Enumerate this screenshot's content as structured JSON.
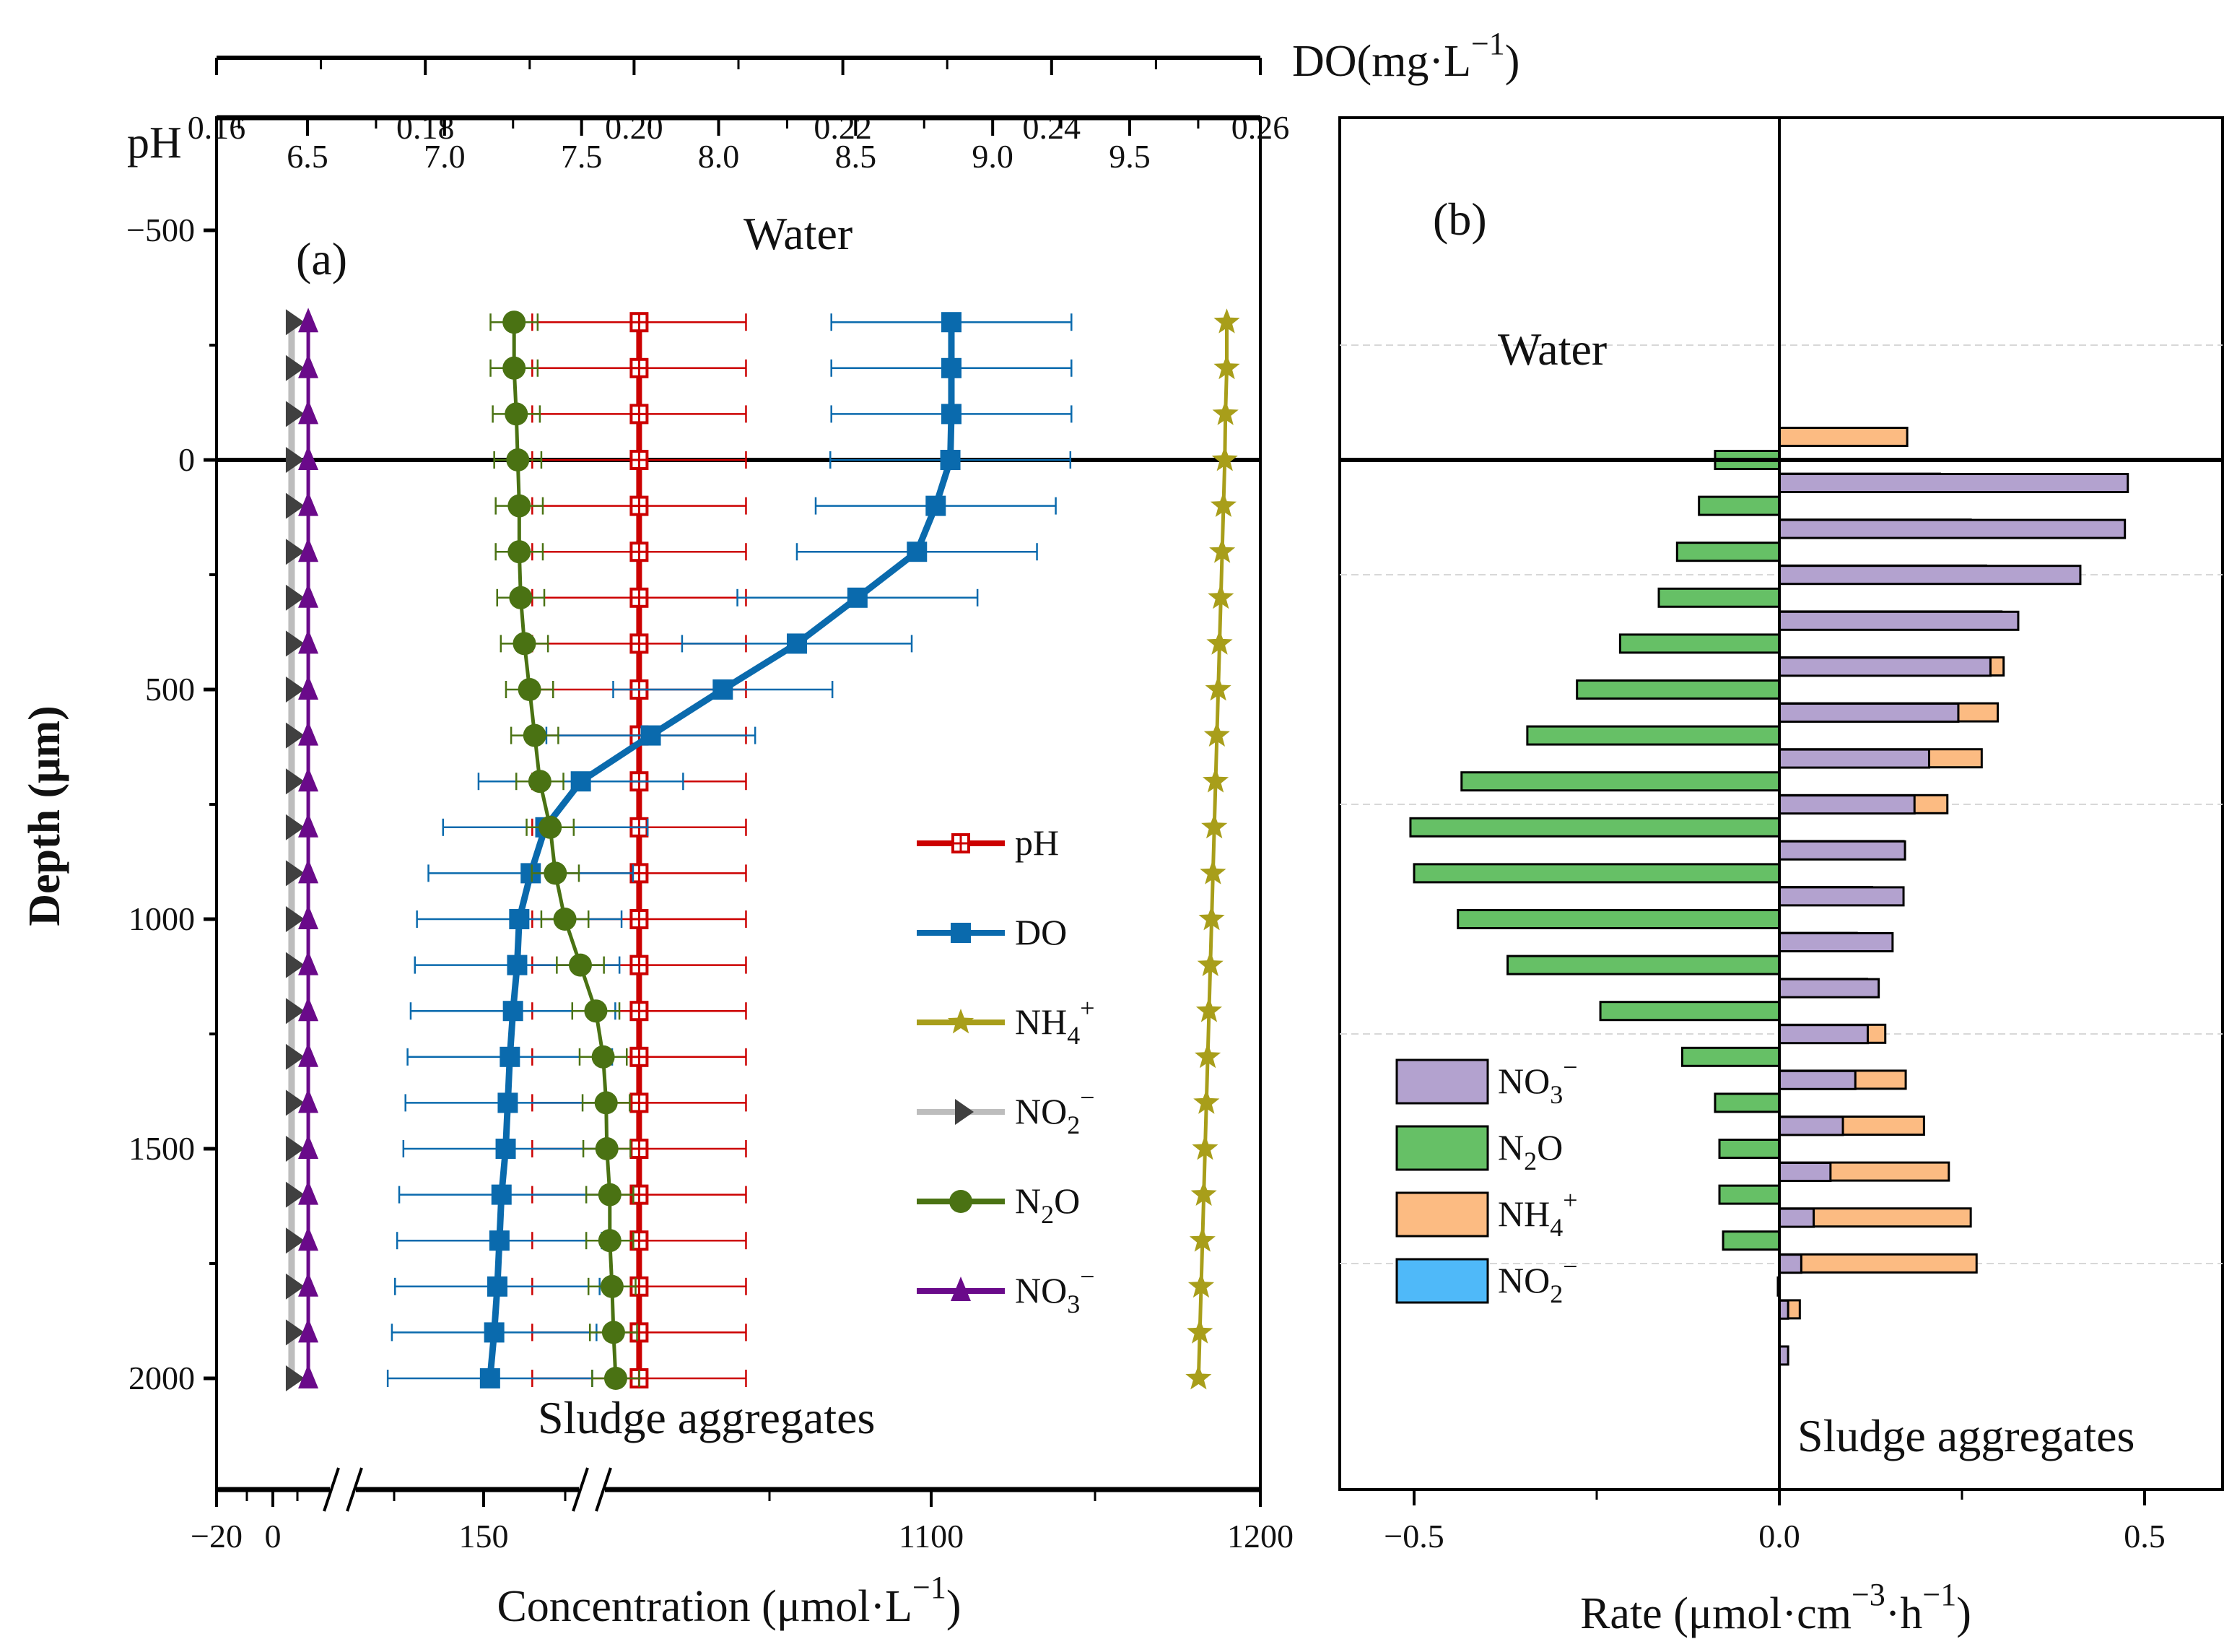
{
  "chart_data": [
    {
      "panel": "a",
      "type": "line",
      "panel_label": "(a)",
      "annotations": {
        "top": "Water",
        "bottom": "Sludge aggregates"
      },
      "ylabel": "Depth (μm)",
      "yticks": [
        -500,
        0,
        500,
        1000,
        1500,
        2000
      ],
      "yticks_text": [
        "−500",
        "0",
        "500",
        "1000",
        "1500",
        "2000"
      ],
      "ylim": [
        -750,
        2250
      ],
      "y_inverted": true,
      "surface_line_depth": 0,
      "xlabel": "Concentration (μmol·L",
      "xlabel_sup": "−1",
      "xlabel_end": ")",
      "xticks_text": [
        "−20",
        "0",
        "150",
        "1100",
        "1200"
      ],
      "x_axis_break": true,
      "top_axis_do": {
        "label": "DO(mg·L",
        "label_sup": "−1",
        "label_end": ")",
        "range": [
          0.16,
          0.26
        ],
        "ticks": [
          0.16,
          0.18,
          0.2,
          0.22,
          0.24,
          0.26
        ],
        "ticks_text": [
          "0.16",
          "0.18",
          "0.20",
          "0.22",
          "0.24",
          "0.26"
        ]
      },
      "top_axis_ph": {
        "label": "pH",
        "ticks": [
          6.5,
          7.0,
          7.5,
          8.0,
          8.5,
          9.0,
          9.5
        ],
        "ticks_text": [
          "6.5",
          "7.0",
          "7.5",
          "8.0",
          "8.5",
          "9.0",
          "9.5"
        ]
      },
      "depth": [
        -300,
        -200,
        -100,
        0,
        100,
        200,
        300,
        400,
        500,
        600,
        700,
        800,
        900,
        1000,
        1100,
        1200,
        1300,
        1400,
        1500,
        1600,
        1700,
        1800,
        1900,
        2000
      ],
      "series": [
        {
          "name": "pH",
          "label": "pH",
          "axis": "pH",
          "color": "#cc0000",
          "marker": "open-square",
          "values": [
            7.71,
            7.71,
            7.71,
            7.71,
            7.71,
            7.71,
            7.71,
            7.71,
            7.71,
            7.71,
            7.71,
            7.71,
            7.71,
            7.71,
            7.71,
            7.71,
            7.71,
            7.71,
            7.71,
            7.71,
            7.71,
            7.71,
            7.71,
            7.71
          ],
          "error": 0.39
        },
        {
          "name": "DO",
          "label": "DO",
          "axis": "DO",
          "color": "#0a6aad",
          "marker": "filled-square",
          "values": [
            0.2304,
            0.2304,
            0.2304,
            0.2303,
            0.2289,
            0.2271,
            0.2214,
            0.2156,
            0.2085,
            0.2016,
            0.1949,
            0.1915,
            0.1901,
            0.189,
            0.1888,
            0.1884,
            0.1881,
            0.1879,
            0.1877,
            0.1873,
            0.1871,
            0.1869,
            0.1866,
            0.1862
          ],
          "error": [
            0.0115,
            0.0115,
            0.0115,
            0.0115,
            0.0115,
            0.0115,
            0.0115,
            0.011,
            0.0105,
            0.01,
            0.0098,
            0.0098,
            0.0098,
            0.0098,
            0.0098,
            0.0098,
            0.0098,
            0.0098,
            0.0098,
            0.0098,
            0.0098,
            0.0098,
            0.0098,
            0.0098
          ]
        },
        {
          "name": "NH4+",
          "label": "NH",
          "label_sub": "4",
          "label_sup": "+",
          "axis": "conc",
          "color": "#a89e1a",
          "marker": "star",
          "values": [
            1190,
            1190,
            1189.6,
            1189.4,
            1189,
            1188.6,
            1188.2,
            1187.8,
            1187.4,
            1187,
            1186.6,
            1186.2,
            1185.8,
            1185.4,
            1185,
            1184.6,
            1184.2,
            1183.8,
            1183.4,
            1183,
            1182.6,
            1182.2,
            1181.8,
            1181.4
          ]
        },
        {
          "name": "NO2-",
          "label": "NO",
          "label_sub": "2",
          "label_sup": "−",
          "axis": "conc",
          "color": "#bdbdbd",
          "marker_color": "#404040",
          "marker": "right-triangle",
          "values": [
            7,
            7,
            7,
            7,
            7,
            7,
            7,
            7,
            7,
            7,
            7,
            7,
            7,
            7,
            7,
            7,
            7,
            7,
            7,
            7,
            7,
            7,
            7,
            7
          ]
        },
        {
          "name": "N2O",
          "label": "N",
          "label_sub": "2",
          "label_tail": "O",
          "axis": "conc",
          "color": "#4a7213",
          "marker": "circle",
          "values": [
            141.0,
            141.0,
            141.3,
            141.5,
            141.7,
            141.7,
            141.9,
            142.4,
            143.1,
            143.8,
            144.5,
            145.9,
            146.6,
            147.9,
            150.0,
            152.1,
            153.1,
            153.5,
            153.6,
            154.0,
            154.0,
            154.3,
            154.5,
            154.8
          ],
          "error": 3.2
        },
        {
          "name": "NO3-",
          "label": "NO",
          "label_sub": "3",
          "label_sup": "−",
          "axis": "conc",
          "color": "#6a0a8a",
          "marker": "triangle",
          "values": [
            13,
            13,
            13,
            13,
            13,
            13,
            13,
            13,
            13,
            13,
            13,
            13,
            13,
            13,
            13,
            13,
            13,
            13,
            13,
            13,
            13,
            13,
            13,
            13
          ]
        }
      ]
    },
    {
      "panel": "b",
      "type": "bar",
      "orientation": "horizontal",
      "panel_label": "(b)",
      "annotations": {
        "top": "Water",
        "bottom": "Sludge aggregates"
      },
      "xlabel": "Rate (μmol·cm",
      "xlabel_sup1": "−3",
      "xlabel_mid": "·h",
      "xlabel_sup2": "−1",
      "xlabel_end": ")",
      "xlim": [
        -0.6,
        0.6
      ],
      "xticks": [
        -0.5,
        0.0,
        0.5
      ],
      "xticks_text": [
        "−0.5",
        "0.0",
        "0.5"
      ],
      "ylim": [
        -750,
        2250
      ],
      "y_inverted": true,
      "grid": "dashed horizontal",
      "depth": [
        0,
        100,
        200,
        300,
        400,
        500,
        600,
        700,
        800,
        900,
        1000,
        1100,
        1200,
        1300,
        1400,
        1500,
        1600,
        1700,
        1800,
        1900,
        2000
      ],
      "legend": [
        {
          "name": "NO3-",
          "label": "NO",
          "sub": "3",
          "sup": "−",
          "color": "#b3a2cf"
        },
        {
          "name": "N2O",
          "label": "N",
          "sub": "2",
          "tail": "O",
          "color": "#66c066"
        },
        {
          "name": "NH4+",
          "label": "NH",
          "sub": "4",
          "sup": "+",
          "color": "#fcbb82"
        },
        {
          "name": "NO2-",
          "label": "NO",
          "sub": "2",
          "sup": "−",
          "color": "#4fb9f9"
        }
      ],
      "series": [
        {
          "name": "NH4+",
          "color": "#fcbb82",
          "offset": -1,
          "values": [
            0.175,
            0.22,
            0.262,
            0.283,
            0.304,
            0.307,
            0.299,
            0.277,
            0.23,
            0.17,
            0.127,
            0.106,
            0.12,
            0.145,
            0.173,
            0.198,
            0.232,
            0.262,
            0.27,
            0.028,
            0.0
          ]
        },
        {
          "name": "N2O",
          "color": "#66c066",
          "offset": 0,
          "values": [
            -0.088,
            -0.11,
            -0.14,
            -0.165,
            -0.218,
            -0.277,
            -0.345,
            -0.435,
            -0.505,
            -0.5,
            -0.44,
            -0.372,
            -0.245,
            -0.133,
            -0.088,
            -0.082,
            -0.082,
            -0.077,
            -0.002,
            0.0,
            0.0
          ]
        },
        {
          "name": "NO3-",
          "color": "#b3a2cf",
          "offset": 1,
          "values": [
            0.477,
            0.473,
            0.412,
            0.327,
            0.289,
            0.245,
            0.205,
            0.185,
            0.172,
            0.17,
            0.155,
            0.136,
            0.121,
            0.104,
            0.087,
            0.07,
            0.047,
            0.03,
            0.012,
            0.012,
            0.0
          ]
        },
        {
          "name": "NO2-",
          "color": "#4fb9f9",
          "offset": 2,
          "values": [
            0,
            0,
            0,
            0,
            0,
            0,
            0,
            0,
            0,
            0,
            0,
            0,
            0,
            0,
            0,
            0,
            0,
            0,
            0,
            0,
            0
          ]
        }
      ]
    }
  ]
}
